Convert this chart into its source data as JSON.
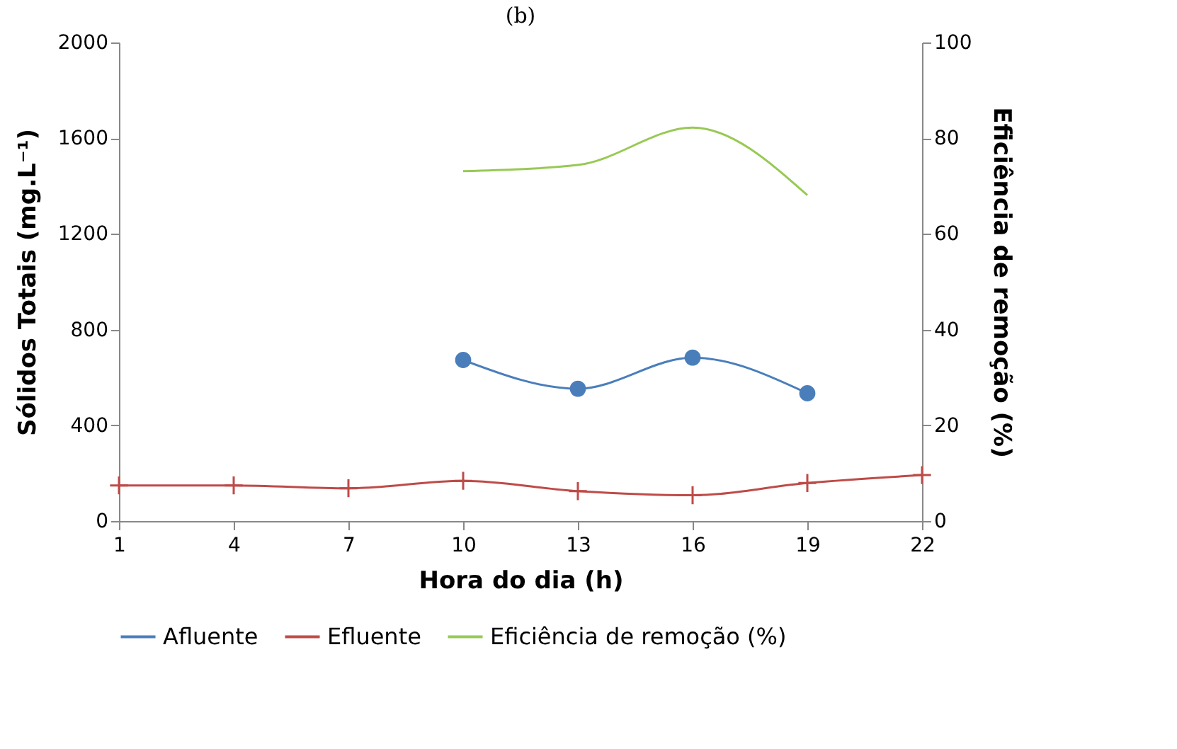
{
  "chart_data": {
    "type": "line",
    "title": "(b)",
    "xlabel": "Hora do dia (h)",
    "ylabel": "Sólidos Totais  (mg.L⁻¹)",
    "y2label": "Eficiência de remoção  (%)",
    "xlim": [
      1,
      22
    ],
    "xticks": [
      1,
      4,
      7,
      10,
      13,
      16,
      19,
      22
    ],
    "ylim": [
      0,
      2000
    ],
    "yticks": [
      0,
      400,
      800,
      1200,
      1600,
      2000
    ],
    "y2lim": [
      0,
      100
    ],
    "y2ticks": [
      0,
      20,
      40,
      60,
      80,
      100
    ],
    "x": [
      1,
      4,
      7,
      10,
      13,
      16,
      19,
      22
    ],
    "grid": false,
    "legend": "bottom",
    "series": [
      {
        "name": "Afluente",
        "color": "#4a7ebb",
        "marker": "circle",
        "values": [
          null,
          null,
          null,
          673,
          553,
          683,
          534,
          null
        ]
      },
      {
        "name": "Efluente",
        "color": "#be4b48",
        "marker": "cross",
        "values": [
          149,
          149,
          137,
          168,
          125,
          108,
          159,
          192
        ]
      },
      {
        "name": "Eficiência de remoção (%)",
        "color": "#98c954",
        "marker": "none",
        "axis": "y2",
        "values": [
          null,
          null,
          null,
          73.1,
          74.4,
          82.2,
          68.1,
          null
        ]
      }
    ]
  }
}
